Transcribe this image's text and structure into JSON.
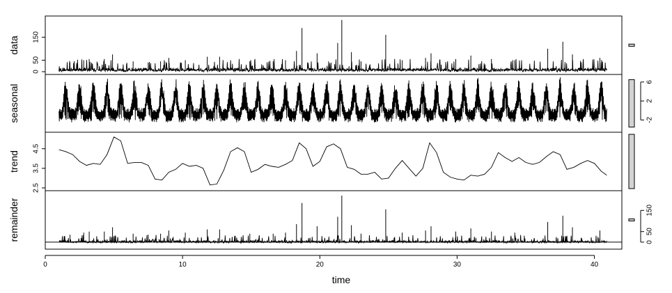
{
  "chart_data": {
    "type": "line",
    "title": "",
    "xlabel": "time",
    "xlim": [
      0,
      42
    ],
    "x_ticks": [
      "0",
      "10",
      "20",
      "30",
      "40"
    ],
    "x_tick_values": [
      0,
      10,
      20,
      30,
      40
    ],
    "x_range": [
      1,
      40.9
    ],
    "grid": false,
    "panels": [
      {
        "name": "data",
        "label": "data",
        "ylim": [
          0,
          230
        ],
        "y_ticks": [
          "0",
          "50",
          "150"
        ],
        "y_tick_values": [
          0,
          50,
          150
        ],
        "y_axis_side": "left",
        "baseline": 5,
        "base_amplitude": 18,
        "spikes": [
          {
            "x": 1.8,
            "y": 40
          },
          {
            "x": 2.8,
            "y": 50
          },
          {
            "x": 3.2,
            "y": 55
          },
          {
            "x": 4.3,
            "y": 55
          },
          {
            "x": 4.9,
            "y": 75
          },
          {
            "x": 6.4,
            "y": 45
          },
          {
            "x": 7.5,
            "y": 40
          },
          {
            "x": 8.4,
            "y": 45
          },
          {
            "x": 9.0,
            "y": 60
          },
          {
            "x": 10.2,
            "y": 50
          },
          {
            "x": 11.8,
            "y": 65
          },
          {
            "x": 12.7,
            "y": 65
          },
          {
            "x": 14.9,
            "y": 45
          },
          {
            "x": 16.6,
            "y": 45
          },
          {
            "x": 17.5,
            "y": 50
          },
          {
            "x": 18.3,
            "y": 90
          },
          {
            "x": 18.7,
            "y": 190
          },
          {
            "x": 19.8,
            "y": 80
          },
          {
            "x": 21.3,
            "y": 125
          },
          {
            "x": 21.6,
            "y": 225
          },
          {
            "x": 22.3,
            "y": 85
          },
          {
            "x": 23.0,
            "y": 45
          },
          {
            "x": 24.8,
            "y": 160
          },
          {
            "x": 26.0,
            "y": 50
          },
          {
            "x": 27.7,
            "y": 60
          },
          {
            "x": 28.1,
            "y": 80
          },
          {
            "x": 29.9,
            "y": 55
          },
          {
            "x": 31.0,
            "y": 70
          },
          {
            "x": 32.5,
            "y": 55
          },
          {
            "x": 34.2,
            "y": 50
          },
          {
            "x": 36.6,
            "y": 100
          },
          {
            "x": 37.7,
            "y": 130
          },
          {
            "x": 38.4,
            "y": 75
          },
          {
            "x": 40.4,
            "y": 60
          }
        ],
        "scale_bar_range": 10
      },
      {
        "name": "seasonal",
        "label": "seasonal",
        "ylim": [
          -4,
          7
        ],
        "y_ticks": [
          "-2",
          "2",
          "6"
        ],
        "y_tick_values": [
          -2,
          2,
          6
        ],
        "y_axis_side": "right",
        "cycles": 41,
        "min": -3,
        "max": 7,
        "scale_bar_range": 10
      },
      {
        "name": "trend",
        "label": "trend",
        "ylim": [
          2.5,
          5.2
        ],
        "y_ticks": [
          "2.5",
          "3.5",
          "4.5"
        ],
        "y_tick_values": [
          2.5,
          3.5,
          4.5
        ],
        "y_axis_side": "left",
        "x": [
          1,
          1.5,
          2,
          2.5,
          3,
          3.5,
          4,
          4.5,
          5,
          5.5,
          6,
          6.5,
          7,
          7.5,
          8,
          8.5,
          9,
          9.5,
          10,
          10.5,
          11,
          11.5,
          12,
          12.5,
          13,
          13.5,
          14,
          14.5,
          15,
          15.5,
          16,
          16.5,
          17,
          17.5,
          18,
          18.5,
          19,
          19.5,
          20,
          20.5,
          21,
          21.5,
          22,
          22.5,
          23,
          23.5,
          24,
          24.5,
          25,
          25.5,
          26,
          26.5,
          27,
          27.5,
          28,
          28.5,
          29,
          29.5,
          30,
          30.5,
          31,
          31.5,
          32,
          32.5,
          33,
          33.5,
          34,
          34.5,
          35,
          35.5,
          36,
          36.5,
          37,
          37.5,
          38,
          38.5,
          39,
          39.5,
          40,
          40.5,
          40.9
        ],
        "values": [
          4.45,
          4.35,
          4.2,
          3.85,
          3.65,
          3.75,
          3.7,
          4.2,
          5.1,
          4.9,
          3.75,
          3.8,
          3.8,
          3.65,
          2.95,
          2.9,
          3.3,
          3.45,
          3.75,
          3.6,
          3.65,
          3.5,
          2.65,
          2.7,
          3.4,
          4.35,
          4.55,
          4.35,
          3.3,
          3.45,
          3.7,
          3.6,
          3.55,
          3.7,
          3.9,
          4.8,
          4.5,
          3.6,
          3.85,
          4.6,
          4.75,
          4.5,
          3.55,
          3.45,
          3.2,
          3.2,
          3.3,
          2.95,
          3.0,
          3.5,
          3.9,
          3.5,
          3.1,
          3.5,
          4.8,
          4.3,
          3.3,
          3.05,
          2.95,
          2.9,
          3.15,
          3.1,
          3.2,
          3.55,
          4.3,
          4.05,
          3.85,
          4.05,
          3.8,
          3.7,
          3.8,
          4.1,
          4.35,
          4.2,
          3.45,
          3.55,
          3.75,
          3.9,
          3.75,
          3.35,
          3.15
        ],
        "scale_bar_range": 10
      },
      {
        "name": "remainder",
        "label": "remainder",
        "ylim": [
          -20,
          230
        ],
        "y_ticks": [
          "0",
          "50",
          "150"
        ],
        "y_tick_values": [
          0,
          50,
          150
        ],
        "y_axis_side": "right",
        "baseline": 0,
        "base_amplitude": 12,
        "zero_line": true,
        "spikes": [
          {
            "x": 1.8,
            "y": 35
          },
          {
            "x": 2.8,
            "y": 45
          },
          {
            "x": 3.2,
            "y": 50
          },
          {
            "x": 4.3,
            "y": 50
          },
          {
            "x": 4.9,
            "y": 70
          },
          {
            "x": 6.4,
            "y": 40
          },
          {
            "x": 7.5,
            "y": 35
          },
          {
            "x": 8.4,
            "y": 40
          },
          {
            "x": 9.0,
            "y": 55
          },
          {
            "x": 10.2,
            "y": 45
          },
          {
            "x": 11.8,
            "y": 60
          },
          {
            "x": 12.7,
            "y": 60
          },
          {
            "x": 14.9,
            "y": 40
          },
          {
            "x": 16.6,
            "y": 40
          },
          {
            "x": 17.5,
            "y": 45
          },
          {
            "x": 18.3,
            "y": 85
          },
          {
            "x": 18.7,
            "y": 185
          },
          {
            "x": 19.8,
            "y": 75
          },
          {
            "x": 21.3,
            "y": 120
          },
          {
            "x": 21.6,
            "y": 220
          },
          {
            "x": 22.3,
            "y": 80
          },
          {
            "x": 23.0,
            "y": 40
          },
          {
            "x": 24.8,
            "y": 155
          },
          {
            "x": 26.0,
            "y": 45
          },
          {
            "x": 27.7,
            "y": 55
          },
          {
            "x": 28.1,
            "y": 75
          },
          {
            "x": 29.9,
            "y": 50
          },
          {
            "x": 31.0,
            "y": 65
          },
          {
            "x": 32.5,
            "y": 50
          },
          {
            "x": 34.2,
            "y": 45
          },
          {
            "x": 36.6,
            "y": 95
          },
          {
            "x": 37.7,
            "y": 125
          },
          {
            "x": 38.4,
            "y": 70
          },
          {
            "x": 40.4,
            "y": 55
          }
        ],
        "scale_bar_range": 10
      }
    ]
  }
}
